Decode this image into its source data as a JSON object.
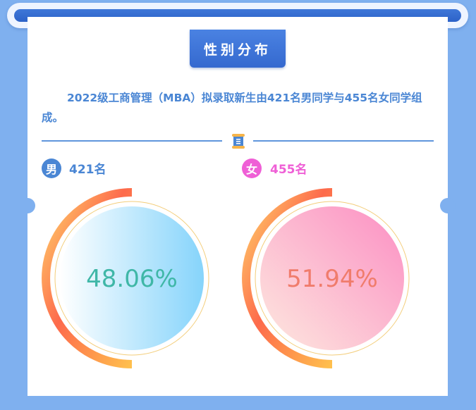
{
  "section_title": "性别分布",
  "intro_text": "2022级工商管理（MBA）拟录取新生由421名男同学与455名女同学组成。",
  "divider_icon": "document-icon",
  "male": {
    "badge": "男",
    "count_label": "421名",
    "percent_label": "48.06%",
    "percent_value": 48.06,
    "text_color": "#3fb7a7",
    "badge_color": "#4a86d4"
  },
  "female": {
    "badge": "女",
    "count_label": "455名",
    "percent_label": "51.94%",
    "percent_value": 51.94,
    "text_color": "#f07c6c",
    "badge_color": "#ef5fd6"
  },
  "colors": {
    "background": "#7fb0ef",
    "accent_blue": "#4a86d4",
    "ring_start": "#fd6a4c",
    "ring_end": "#ffd46b"
  }
}
